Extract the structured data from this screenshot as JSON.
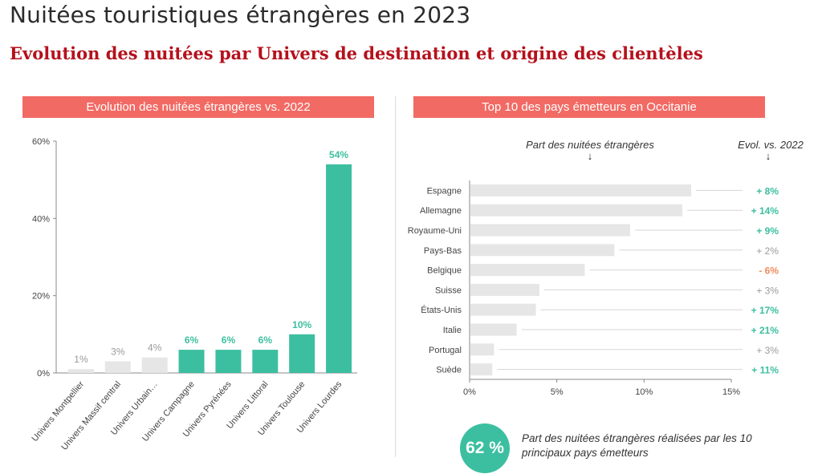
{
  "page": {
    "title": "Nuitées touristiques étrangères en 2023",
    "subtitle": "Evolution des nuitées par Univers de destination et origine des clientèles"
  },
  "colors": {
    "accent_banner": "#f26a64",
    "highlight": "#3cbfa0",
    "muted": "#e6e6e6",
    "negative": "#f08a5d",
    "subtitle": "#b5111c"
  },
  "left_panel": {
    "banner": "Evolution des nuitées étrangères vs. 2022"
  },
  "right_panel": {
    "banner": "Top 10 des pays émetteurs en Occitanie",
    "col_share": "Part des nuitées étrangères",
    "col_evol": "Evol. vs. 2022"
  },
  "kpi": {
    "value": "62 %",
    "text": "Part des nuitées étrangères réalisées par les 10 principaux pays émetteurs"
  },
  "chart_data": [
    {
      "type": "bar",
      "title": "Evolution des nuitées étrangères vs. 2022",
      "categories": [
        "Univers Montpellier",
        "Univers Massif central",
        "Univers Urbain…",
        "Univers Campagne",
        "Univers Pyrénées",
        "Univers Littoral",
        "Univers Toulouse",
        "Univers Lourdes"
      ],
      "values": [
        1,
        3,
        4,
        6,
        6,
        6,
        10,
        54
      ],
      "labels": [
        "1%",
        "3%",
        "4%",
        "6%",
        "6%",
        "6%",
        "10%",
        "54%"
      ],
      "highlight": [
        false,
        false,
        false,
        true,
        true,
        true,
        true,
        true
      ],
      "ylim": [
        0,
        60
      ],
      "yticks": [
        "0%",
        "20%",
        "40%",
        "60%"
      ],
      "grid": false
    },
    {
      "type": "bar",
      "orientation": "horizontal",
      "title": "Top 10 des pays émetteurs en Occitanie",
      "categories": [
        "Espagne",
        "Allemagne",
        "Royaume-Uni",
        "Pays-Bas",
        "Belgique",
        "Suisse",
        "États-Unis",
        "Italie",
        "Portugal",
        "Suède"
      ],
      "values": [
        12.7,
        12.2,
        9.2,
        8.3,
        6.6,
        4.0,
        3.8,
        2.7,
        1.4,
        1.3
      ],
      "evolution": [
        "+ 8%",
        "+ 14%",
        "+ 9%",
        "+ 2%",
        "- 6%",
        "+ 3%",
        "+ 17%",
        "+ 21%",
        "+ 3%",
        "+ 11%"
      ],
      "evolution_style": [
        "up",
        "up",
        "up",
        "neutral",
        "down",
        "neutral",
        "up",
        "up",
        "neutral",
        "up"
      ],
      "xlim": [
        0,
        15
      ],
      "xticks": [
        "0%",
        "5%",
        "10%",
        "15%"
      ],
      "grid": false
    }
  ]
}
